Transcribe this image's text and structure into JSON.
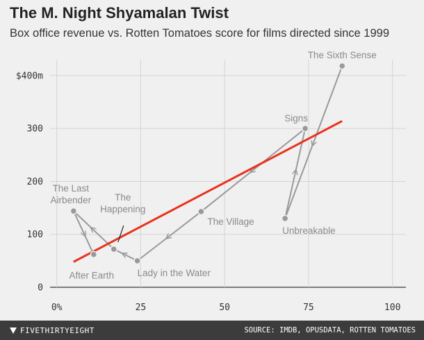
{
  "header": {
    "title": "The M. Night Shyamalan Twist",
    "subtitle": "Box office revenue vs. Rotten Tomatoes score for films directed since 1999"
  },
  "chart_data": {
    "type": "scatter",
    "title": "The M. Night Shyamalan Twist",
    "subtitle": "Box office revenue vs. Rotten Tomatoes score for films directed since 1999",
    "xlabel": "",
    "ylabel": "",
    "xlim": [
      -2,
      104
    ],
    "ylim": [
      0,
      430
    ],
    "x_ticks": [
      {
        "value": 0,
        "label": "0%"
      },
      {
        "value": 25,
        "label": "25"
      },
      {
        "value": 50,
        "label": "50"
      },
      {
        "value": 75,
        "label": "75"
      },
      {
        "value": 100,
        "label": "100"
      }
    ],
    "y_ticks": [
      {
        "value": 0,
        "label": "0"
      },
      {
        "value": 100,
        "label": "100"
      },
      {
        "value": 200,
        "label": "200"
      },
      {
        "value": 300,
        "label": "300"
      },
      {
        "value": 400,
        "label": "$400m"
      }
    ],
    "grid": true,
    "series": [
      {
        "type": "scatter",
        "points": [
          {
            "label": [
              "The Sixth Sense"
            ],
            "x": 85,
            "y": 418
          },
          {
            "label": [
              "Unbreakable"
            ],
            "x": 68,
            "y": 130
          },
          {
            "label": [
              "Signs"
            ],
            "x": 74,
            "y": 300
          },
          {
            "label": [
              "The Village"
            ],
            "x": 43,
            "y": 143
          },
          {
            "label": [
              "Lady in the Water"
            ],
            "x": 24,
            "y": 50
          },
          {
            "label": [
              "The",
              "Happening"
            ],
            "x": 17,
            "y": 72
          },
          {
            "label": [
              "The Last",
              "Airbender"
            ],
            "x": 5,
            "y": 144
          },
          {
            "label": [
              "After Earth"
            ],
            "x": 11,
            "y": 62
          }
        ]
      },
      {
        "type": "line",
        "name": "trend",
        "x": [
          5,
          85
        ],
        "y": [
          48,
          314
        ]
      }
    ],
    "colors": {
      "points": "#999999",
      "trend": "#e8321e",
      "grid": "#d4d4d4"
    }
  },
  "footer": {
    "brand": "FIVETHIRTYEIGHT",
    "source": "SOURCE: IMDB, OPUSDATA, ROTTEN TOMATOES"
  }
}
